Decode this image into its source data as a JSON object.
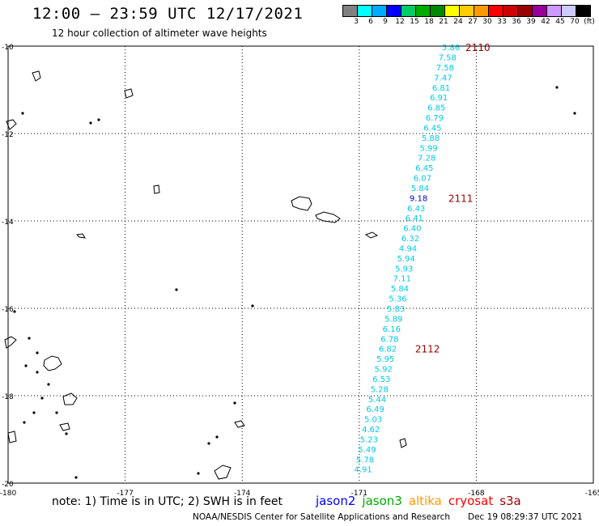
{
  "header": {
    "title": "12:00 — 23:59 UTC 12/17/2021",
    "subtitle": "12 hour collection of altimeter wave heights"
  },
  "colorbar": {
    "colors": [
      "#808080",
      "#00ffff",
      "#00aaff",
      "#0000ff",
      "#00cc66",
      "#00aa00",
      "#008800",
      "#ffff00",
      "#ffcc00",
      "#ff9900",
      "#ff0000",
      "#cc0000",
      "#990000",
      "#990099",
      "#cc99ff",
      "#ccccff",
      "#000000"
    ],
    "labels": [
      "3",
      "6",
      "9",
      "12",
      "15",
      "18",
      "21",
      "24",
      "27",
      "30",
      "33",
      "36",
      "39",
      "42",
      "45",
      "70",
      "(ft)"
    ]
  },
  "axes": {
    "lon_ticks": [
      {
        "value": -180,
        "label": "-180"
      },
      {
        "value": -177,
        "label": "-177"
      },
      {
        "value": -174,
        "label": "-174"
      },
      {
        "value": -171,
        "label": "-171"
      },
      {
        "value": -168,
        "label": "-168"
      },
      {
        "value": -165,
        "label": "-165"
      }
    ],
    "lat_ticks": [
      {
        "value": -10,
        "label": "-10"
      },
      {
        "value": -12,
        "label": "-12"
      },
      {
        "value": -14,
        "label": "-14"
      },
      {
        "value": -16,
        "label": "-16"
      },
      {
        "value": -18,
        "label": "-18"
      },
      {
        "value": -20,
        "label": "-20"
      }
    ],
    "lon_range": [
      -180,
      -165
    ],
    "lat_range": [
      -20,
      -10
    ]
  },
  "track": {
    "points": [
      {
        "lon": -168.65,
        "lat": -10.02,
        "value": "5.86",
        "color": "#00c8e6"
      },
      {
        "lon": -168.74,
        "lat": -10.25,
        "value": "7.58",
        "color": "#00c8e6"
      },
      {
        "lon": -168.8,
        "lat": -10.48,
        "value": "7.58",
        "color": "#00c8e6"
      },
      {
        "lon": -168.85,
        "lat": -10.71,
        "value": "7.47",
        "color": "#00c8e6"
      },
      {
        "lon": -168.9,
        "lat": -10.94,
        "value": "6.81",
        "color": "#00c8e6"
      },
      {
        "lon": -168.96,
        "lat": -11.17,
        "value": "6.91",
        "color": "#00c8e6"
      },
      {
        "lon": -169.02,
        "lat": -11.4,
        "value": "6.85",
        "color": "#00c8e6"
      },
      {
        "lon": -169.07,
        "lat": -11.63,
        "value": "6.79",
        "color": "#00c8e6"
      },
      {
        "lon": -169.12,
        "lat": -11.86,
        "value": "6.45",
        "color": "#00c8e6"
      },
      {
        "lon": -169.17,
        "lat": -12.09,
        "value": "5.88",
        "color": "#00c8e6"
      },
      {
        "lon": -169.22,
        "lat": -12.32,
        "value": "5.99",
        "color": "#00c8e6"
      },
      {
        "lon": -169.27,
        "lat": -12.55,
        "value": "7.28",
        "color": "#00c8e6"
      },
      {
        "lon": -169.33,
        "lat": -12.78,
        "value": "6.45",
        "color": "#00c8e6"
      },
      {
        "lon": -169.38,
        "lat": -13.01,
        "value": "6.07",
        "color": "#00c8e6"
      },
      {
        "lon": -169.44,
        "lat": -13.24,
        "value": "5.84",
        "color": "#00c8e6"
      },
      {
        "lon": -169.48,
        "lat": -13.47,
        "value": "9.18",
        "color": "#0000cc"
      },
      {
        "lon": -169.54,
        "lat": -13.7,
        "value": "6.43",
        "color": "#00c8e6"
      },
      {
        "lon": -169.59,
        "lat": -13.93,
        "value": "6.41",
        "color": "#00c8e6"
      },
      {
        "lon": -169.64,
        "lat": -14.16,
        "value": "6.40",
        "color": "#00c8e6"
      },
      {
        "lon": -169.69,
        "lat": -14.39,
        "value": "6.32",
        "color": "#00c8e6"
      },
      {
        "lon": -169.75,
        "lat": -14.62,
        "value": "4.94",
        "color": "#00c8e6"
      },
      {
        "lon": -169.8,
        "lat": -14.85,
        "value": "5.94",
        "color": "#00c8e6"
      },
      {
        "lon": -169.85,
        "lat": -15.08,
        "value": "5.93",
        "color": "#00c8e6"
      },
      {
        "lon": -169.9,
        "lat": -15.31,
        "value": "7.11",
        "color": "#00c8e6"
      },
      {
        "lon": -169.96,
        "lat": -15.54,
        "value": "5.84",
        "color": "#00c8e6"
      },
      {
        "lon": -170.01,
        "lat": -15.77,
        "value": "5.36",
        "color": "#00c8e6"
      },
      {
        "lon": -170.06,
        "lat": -16.0,
        "value": "5.83",
        "color": "#00c8e6"
      },
      {
        "lon": -170.12,
        "lat": -16.23,
        "value": "5.89",
        "color": "#00c8e6"
      },
      {
        "lon": -170.17,
        "lat": -16.46,
        "value": "6.16",
        "color": "#00c8e6"
      },
      {
        "lon": -170.22,
        "lat": -16.69,
        "value": "6.78",
        "color": "#00c8e6"
      },
      {
        "lon": -170.27,
        "lat": -16.92,
        "value": "6.82",
        "color": "#00c8e6"
      },
      {
        "lon": -170.33,
        "lat": -17.15,
        "value": "5.95",
        "color": "#00c8e6"
      },
      {
        "lon": -170.38,
        "lat": -17.38,
        "value": "5.92",
        "color": "#00c8e6"
      },
      {
        "lon": -170.43,
        "lat": -17.61,
        "value": "6.53",
        "color": "#00c8e6"
      },
      {
        "lon": -170.48,
        "lat": -17.84,
        "value": "5.28",
        "color": "#00c8e6"
      },
      {
        "lon": -170.54,
        "lat": -18.07,
        "value": "5.44",
        "color": "#00c8e6"
      },
      {
        "lon": -170.59,
        "lat": -18.3,
        "value": "6.49",
        "color": "#00c8e6"
      },
      {
        "lon": -170.64,
        "lat": -18.53,
        "value": "5.03",
        "color": "#00c8e6"
      },
      {
        "lon": -170.7,
        "lat": -18.76,
        "value": "4.62",
        "color": "#00c8e6"
      },
      {
        "lon": -170.75,
        "lat": -18.99,
        "value": "5.23",
        "color": "#00c8e6"
      },
      {
        "lon": -170.8,
        "lat": -19.22,
        "value": "5.49",
        "color": "#00c8e6"
      },
      {
        "lon": -170.85,
        "lat": -19.45,
        "value": "5.78",
        "color": "#00c8e6"
      },
      {
        "lon": -170.9,
        "lat": -19.68,
        "value": "4.91",
        "color": "#00c8e6"
      }
    ],
    "time_labels": [
      {
        "lon": -167.96,
        "lat": -10.02,
        "text": "2110"
      },
      {
        "lon": -168.4,
        "lat": -13.47,
        "text": "2111"
      },
      {
        "lon": -169.25,
        "lat": -16.92,
        "text": "2112"
      }
    ],
    "time_label_color": "#990000"
  },
  "footer": {
    "note": "note: 1) Time is in UTC; 2) SWH is in feet",
    "satellites": [
      {
        "name": "jason2",
        "color": "#0000ff"
      },
      {
        "name": "jason3",
        "color": "#00aa00"
      },
      {
        "name": "altika",
        "color": "#ff9900"
      },
      {
        "name": "cryosat",
        "color": "#ff0000"
      },
      {
        "name": "s3a",
        "color": "#990000"
      }
    ],
    "credit": "NOAA/NESDIS Center for Satellite Applications and Research",
    "timestamp": "Dec 19 08:29:37 UTC 2021"
  }
}
